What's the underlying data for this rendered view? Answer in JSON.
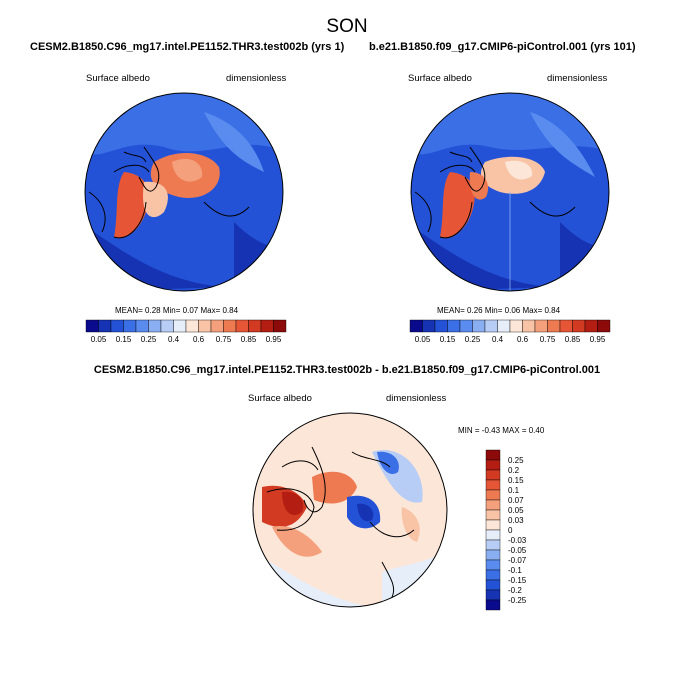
{
  "main_title": "SON",
  "panels": [
    {
      "title": "CESM2.B1850.C96_mg17.intel.PE1152.THR3.test002b (yrs 1)",
      "variable": "Surface albedo",
      "units": "dimensionless",
      "stats": {
        "mean_label": "MEAN=",
        "mean": "0.28",
        "min_label": "Min=",
        "min": "0.07",
        "max_label": "Max=",
        "max": "0.84"
      }
    },
    {
      "title": "b.e21.B1850.f09_g17.CMIP6-piControl.001 (yrs 101)",
      "variable": "Surface albedo",
      "units": "dimensionless",
      "stats": {
        "mean_label": "MEAN=",
        "mean": "0.26",
        "min_label": "Min=",
        "min": "0.06",
        "max_label": "Max=",
        "max": "0.84"
      }
    }
  ],
  "diff_panel": {
    "title": "CESM2.B1850.C96_mg17.intel.PE1152.THR3.test002b - b.e21.B1850.f09_g17.CMIP6-piControl.001",
    "variable": "Surface albedo",
    "units": "dimensionless",
    "stats": {
      "min_label": "MIN =",
      "min": "-0.43",
      "max_label": "MAX =",
      "max": "0.40"
    }
  },
  "colorbar_abs": {
    "labels": [
      "0.05",
      "0.15",
      "0.25",
      "0.4",
      "0.6",
      "0.75",
      "0.85",
      "0.95"
    ],
    "colors": [
      "#0a0a8c",
      "#1533b3",
      "#2452d6",
      "#3b6fe6",
      "#5a8cf0",
      "#8aaef2",
      "#b8cdf5",
      "#e6eefa",
      "#fce6d8",
      "#f9c4a6",
      "#f4a07c",
      "#ee7a52",
      "#e65636",
      "#d23a22",
      "#b41e12",
      "#8c0a0a"
    ]
  },
  "colorbar_diff": {
    "labels": [
      "0.25",
      "0.2",
      "0.15",
      "0.1",
      "0.07",
      "0.05",
      "0.03",
      "0",
      "-0.03",
      "-0.05",
      "-0.07",
      "-0.1",
      "-0.15",
      "-0.2",
      "-0.25"
    ],
    "colors": [
      "#8c0a0a",
      "#b41e12",
      "#d23a22",
      "#e65636",
      "#ee7a52",
      "#f4a07c",
      "#f9c4a6",
      "#fce6d8",
      "#e6eefa",
      "#b8cdf5",
      "#8aaef2",
      "#5a8cf0",
      "#3b6fe6",
      "#2452d6",
      "#1533b3",
      "#0a0a8c"
    ]
  }
}
